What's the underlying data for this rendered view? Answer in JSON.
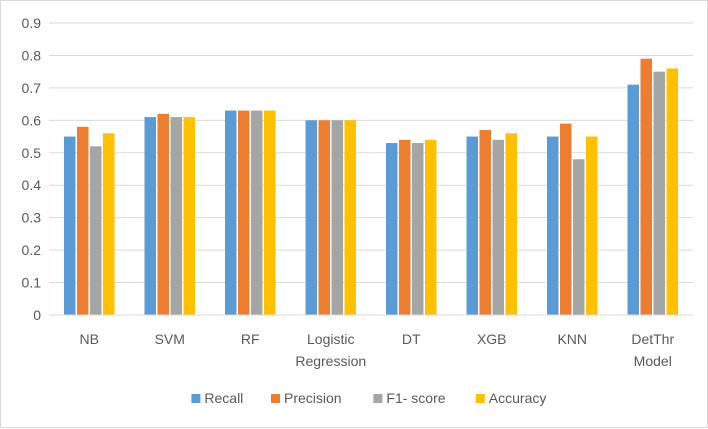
{
  "chart_data": {
    "type": "bar",
    "title": "",
    "xlabel": "",
    "ylabel": "",
    "ylim": [
      0,
      0.9
    ],
    "yticks": [
      "0",
      "0.1",
      "0.2",
      "0.3",
      "0.4",
      "0.5",
      "0.6",
      "0.7",
      "0.8",
      "0.9"
    ],
    "grid": true,
    "legend_position": "bottom",
    "categories": [
      [
        "NB"
      ],
      [
        "SVM"
      ],
      [
        "RF"
      ],
      [
        "Logistic",
        "Regression"
      ],
      [
        "DT"
      ],
      [
        "XGB"
      ],
      [
        "KNN"
      ],
      [
        "DetThr",
        "Model"
      ]
    ],
    "series": [
      {
        "name": "Recall",
        "color": "#5b9bd5",
        "values": [
          0.55,
          0.61,
          0.63,
          0.6,
          0.53,
          0.55,
          0.55,
          0.71
        ]
      },
      {
        "name": "Precision",
        "color": "#ed7d31",
        "values": [
          0.58,
          0.62,
          0.63,
          0.6,
          0.54,
          0.57,
          0.59,
          0.79
        ]
      },
      {
        "name": "F1- score",
        "color": "#a5a5a5",
        "values": [
          0.52,
          0.61,
          0.63,
          0.6,
          0.53,
          0.54,
          0.48,
          0.75
        ]
      },
      {
        "name": "Accuracy",
        "color": "#ffc000",
        "values": [
          0.56,
          0.61,
          0.63,
          0.6,
          0.54,
          0.56,
          0.55,
          0.76
        ]
      }
    ]
  }
}
